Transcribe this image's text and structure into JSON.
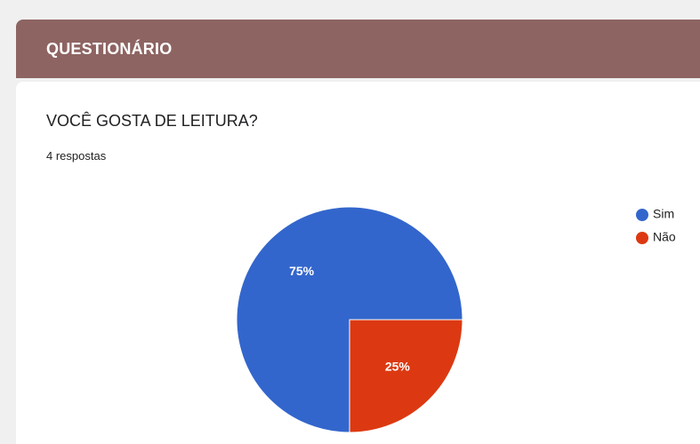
{
  "header": {
    "title": "QUESTIONÁRIO"
  },
  "question": {
    "title": "VOCÊ GOSTA DE LEITURA?",
    "responses": "4 respostas"
  },
  "chart_data": {
    "type": "pie",
    "categories": [
      "Sim",
      "Não"
    ],
    "values": [
      75,
      25
    ],
    "value_labels": [
      "75%",
      "25%"
    ],
    "colors": [
      "#3366cc",
      "#dc3912"
    ],
    "legend": "right"
  }
}
